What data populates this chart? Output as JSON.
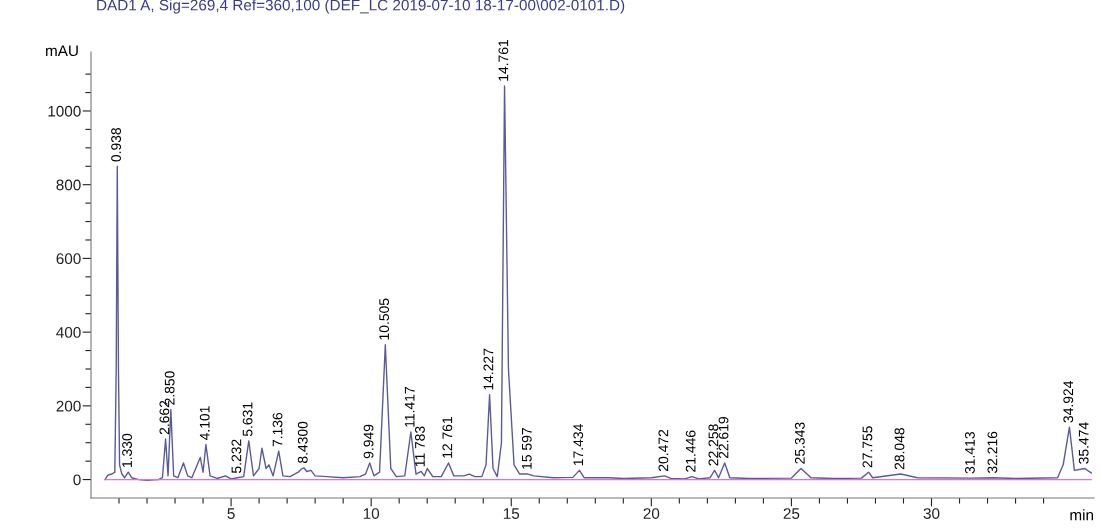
{
  "chart_data": {
    "type": "line",
    "title": "DAD1 A, Sig=269,4 Ref=360,100 (DEF_LC 2019-07-10 18-17-00\\002-0101.D)",
    "xlabel": "min",
    "ylabel": "mAU",
    "series": [
      {
        "color": "#5a5a9a",
        "x": [
          0.5,
          0.6,
          0.75,
          0.85,
          0.9,
          0.938,
          0.98,
          1.02,
          1.1,
          1.2,
          1.33,
          1.45,
          1.7,
          2.0,
          2.4,
          2.55,
          2.662,
          2.75,
          2.85,
          2.95,
          3.1,
          3.3,
          3.45,
          3.6,
          3.9,
          4.0,
          4.101,
          4.25,
          4.5,
          4.8,
          5.0,
          5.232,
          5.45,
          5.631,
          5.8,
          6.0,
          6.1,
          6.25,
          6.35,
          6.5,
          6.7,
          6.85,
          7.1,
          7.4,
          7.5,
          7.6,
          7.7,
          7.85,
          8.0,
          8.43,
          9.0,
          9.6,
          9.8,
          9.949,
          10.1,
          10.3,
          10.505,
          10.7,
          10.9,
          11.2,
          11.417,
          11.6,
          11.783,
          11.9,
          12.0,
          12.2,
          12.5,
          12.761,
          12.95,
          13.3,
          13.5,
          13.7,
          13.95,
          14.1,
          14.227,
          14.35,
          14.5,
          14.65,
          14.761,
          14.9,
          15.1,
          15.3,
          15.597,
          15.8,
          16.5,
          17.2,
          17.434,
          17.6,
          18.5,
          19.0,
          20.0,
          20.472,
          20.7,
          21.2,
          21.446,
          21.7,
          22.1,
          22.258,
          22.4,
          22.619,
          22.8,
          23.5,
          25.0,
          25.343,
          25.7,
          26.5,
          27.5,
          27.755,
          27.9,
          28.9,
          29.5,
          31.413,
          32.216,
          33.0,
          34.5,
          34.7,
          34.924,
          35.1,
          35.474,
          35.7
        ],
        "values": [
          0,
          12,
          15,
          20,
          300,
          850,
          300,
          40,
          15,
          5,
          20,
          5,
          0,
          -2,
          0,
          5,
          110,
          10,
          190,
          10,
          5,
          45,
          10,
          5,
          60,
          20,
          95,
          10,
          3,
          10,
          2,
          5,
          8,
          105,
          10,
          30,
          85,
          30,
          40,
          10,
          77,
          10,
          8,
          20,
          28,
          32,
          22,
          25,
          10,
          8,
          5,
          8,
          15,
          45,
          10,
          20,
          366,
          30,
          8,
          10,
          129,
          15,
          22,
          10,
          30,
          8,
          8,
          45,
          10,
          10,
          15,
          8,
          8,
          40,
          230,
          30,
          8,
          100,
          1068,
          300,
          40,
          15,
          15,
          10,
          5,
          6,
          25,
          5,
          5,
          3,
          5,
          10,
          3,
          2,
          8,
          2,
          5,
          25,
          5,
          45,
          5,
          3,
          4,
          30,
          5,
          3,
          4,
          20,
          5,
          15,
          5,
          4,
          5,
          3,
          5,
          40,
          142,
          25,
          30,
          18
        ]
      },
      {
        "color": "#e070e0",
        "x": [
          0.5,
          35.7
        ],
        "values": [
          0,
          0
        ]
      }
    ],
    "xlim": [
      0,
      35.8
    ],
    "ylim": [
      -50,
      1160
    ],
    "xticks": [
      {
        "value": 1,
        "label": null
      },
      {
        "value": 2,
        "label": null
      },
      {
        "value": 3,
        "label": null
      },
      {
        "value": 4,
        "label": null
      },
      5,
      {
        "value": 6,
        "label": null
      },
      {
        "value": 7,
        "label": null
      },
      {
        "value": 8,
        "label": null
      },
      {
        "value": 9,
        "label": null
      },
      10,
      {
        "value": 11,
        "label": null
      },
      {
        "value": 12,
        "label": null
      },
      {
        "value": 13,
        "label": null
      },
      {
        "value": 14,
        "label": null
      },
      15,
      {
        "value": 16,
        "label": null
      },
      {
        "value": 17,
        "label": null
      },
      {
        "value": 18,
        "label": null
      },
      {
        "value": 19,
        "label": null
      },
      20,
      {
        "value": 21,
        "label": null
      },
      {
        "value": 22,
        "label": null
      },
      {
        "value": 23,
        "label": null
      },
      {
        "value": 24,
        "label": null
      },
      25,
      {
        "value": 26,
        "label": null
      },
      {
        "value": 27,
        "label": null
      },
      {
        "value": 28,
        "label": null
      },
      {
        "value": 29,
        "label": null
      },
      30,
      {
        "value": 31,
        "label": null
      },
      {
        "value": 32,
        "label": null
      },
      {
        "value": 33,
        "label": null
      },
      {
        "value": 34,
        "label": null
      }
    ],
    "yticks": [
      0,
      {
        "value": 50,
        "label": null
      },
      {
        "value": 100,
        "label": null
      },
      {
        "value": 150,
        "label": null
      },
      200,
      {
        "value": 250,
        "label": null
      },
      {
        "value": 300,
        "label": null
      },
      {
        "value": 350,
        "label": null
      },
      400,
      {
        "value": 450,
        "label": null
      },
      {
        "value": 500,
        "label": null
      },
      {
        "value": 550,
        "label": null
      },
      600,
      {
        "value": 650,
        "label": null
      },
      {
        "value": 700,
        "label": null
      },
      {
        "value": 750,
        "label": null
      },
      800,
      {
        "value": 850,
        "label": null
      },
      {
        "value": 900,
        "label": null
      },
      {
        "value": 950,
        "label": null
      },
      1000,
      {
        "value": 1050,
        "label": null
      },
      {
        "value": 1100,
        "label": null
      }
    ],
    "grid": false,
    "legend": false,
    "marker": "none",
    "line_style": "solid",
    "annotations": [
      {
        "text": "0.938",
        "x": 0.938,
        "y": 850
      },
      {
        "text": "1.330",
        "x": 1.33,
        "y": 20
      },
      {
        "text": "2.662",
        "x": 2.662,
        "y": 110
      },
      {
        "text": "2.850",
        "x": 2.85,
        "y": 190
      },
      {
        "text": "4.101",
        "x": 4.101,
        "y": 95
      },
      {
        "text": "5.232",
        "x": 5.232,
        "y": 5
      },
      {
        "text": "5.631",
        "x": 5.631,
        "y": 105
      },
      {
        "text": "7.136",
        "x": 6.7,
        "y": 77
      },
      {
        "text": "8.4300",
        "x": 7.6,
        "y": 32
      },
      {
        "text": "9.949",
        "x": 9.949,
        "y": 45
      },
      {
        "text": "10.505",
        "x": 10.505,
        "y": 366
      },
      {
        "text": "11.417",
        "x": 11.417,
        "y": 129
      },
      {
        "text": "11 783",
        "x": 11.783,
        "y": 22
      },
      {
        "text": "12 761",
        "x": 12.761,
        "y": 45
      },
      {
        "text": "14.227",
        "x": 14.227,
        "y": 230
      },
      {
        "text": "14.761",
        "x": 14.761,
        "y": 1068
      },
      {
        "text": "15 597",
        "x": 15.597,
        "y": 15
      },
      {
        "text": "17.434",
        "x": 17.434,
        "y": 25
      },
      {
        "text": "20.472",
        "x": 20.472,
        "y": 10
      },
      {
        "text": "21.446",
        "x": 21.446,
        "y": 8
      },
      {
        "text": "22.258",
        "x": 22.258,
        "y": 25
      },
      {
        "text": "22.619",
        "x": 22.619,
        "y": 45
      },
      {
        "text": "25.343",
        "x": 25.343,
        "y": 30
      },
      {
        "text": "27.755",
        "x": 27.755,
        "y": 20
      },
      {
        "text": "28.048",
        "x": 28.9,
        "y": 15
      },
      {
        "text": "31.413",
        "x": 31.413,
        "y": 4
      },
      {
        "text": "32.216",
        "x": 32.216,
        "y": 5
      },
      {
        "text": "34.924",
        "x": 34.924,
        "y": 142
      },
      {
        "text": "35.474",
        "x": 35.474,
        "y": 30
      }
    ]
  }
}
